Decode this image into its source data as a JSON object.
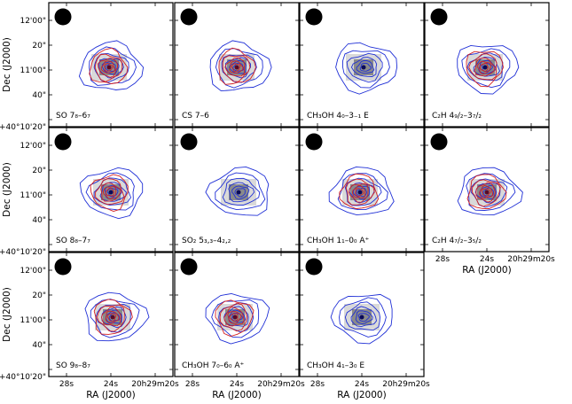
{
  "chart_data": {
    "type": "contour-map-grid",
    "xlabel": "RA (J2000)",
    "ylabel": "Dec (J2000)",
    "ra_ticks": [
      "28s",
      "24s",
      "20h29m20s"
    ],
    "dec_ticks": [
      "12'00\"",
      "20\"",
      "11'00\"",
      "40\"",
      "+40°10'20\""
    ],
    "beam_marker": "filled circle (synthesized beam)",
    "contour_colors": {
      "red": "#d42020",
      "blue": "#1f2fd6"
    },
    "panels": [
      {
        "id": "so-78-67",
        "label": "SO 7₈–6₇",
        "red": true,
        "blue": true,
        "peak": "red"
      },
      {
        "id": "cs-7-6",
        "label": "CS 7–6",
        "red": true,
        "blue": true,
        "peak": "red"
      },
      {
        "id": "ch3oh-40-3-1",
        "label": "CH₃OH 4₀–3₋₁ E",
        "red": false,
        "blue": true,
        "peak": "blue"
      },
      {
        "id": "c2h-49-37",
        "label": "C₂H 4₉/₂–3₇/₂",
        "red": true,
        "blue": true,
        "peak": "blue"
      },
      {
        "id": "so-88-77",
        "label": "SO 8₈–7₇",
        "red": true,
        "blue": true,
        "peak": "blue"
      },
      {
        "id": "so2-533-422",
        "label": "SO₂ 5₃,₃–4₂,₂",
        "red": false,
        "blue": true,
        "peak": "blue"
      },
      {
        "id": "ch3oh-11-00",
        "label": "CH₃OH 1₁–0₀ A⁺",
        "red": true,
        "blue": true,
        "peak": "blue"
      },
      {
        "id": "c2h-47-35",
        "label": "C₂H 4₇/₂–3₅/₂",
        "red": true,
        "blue": true,
        "peak": "red"
      },
      {
        "id": "so-98-87",
        "label": "SO 9₈–8₇",
        "red": true,
        "blue": true,
        "peak": "red"
      },
      {
        "id": "ch3oh-70-60",
        "label": "CH₃OH 7₀–6₀ A⁺",
        "red": true,
        "blue": true,
        "peak": "red"
      },
      {
        "id": "ch3oh-41-30",
        "label": "CH₃OH 4₁–3₀ E",
        "red": false,
        "blue": true,
        "peak": "blue"
      }
    ]
  }
}
